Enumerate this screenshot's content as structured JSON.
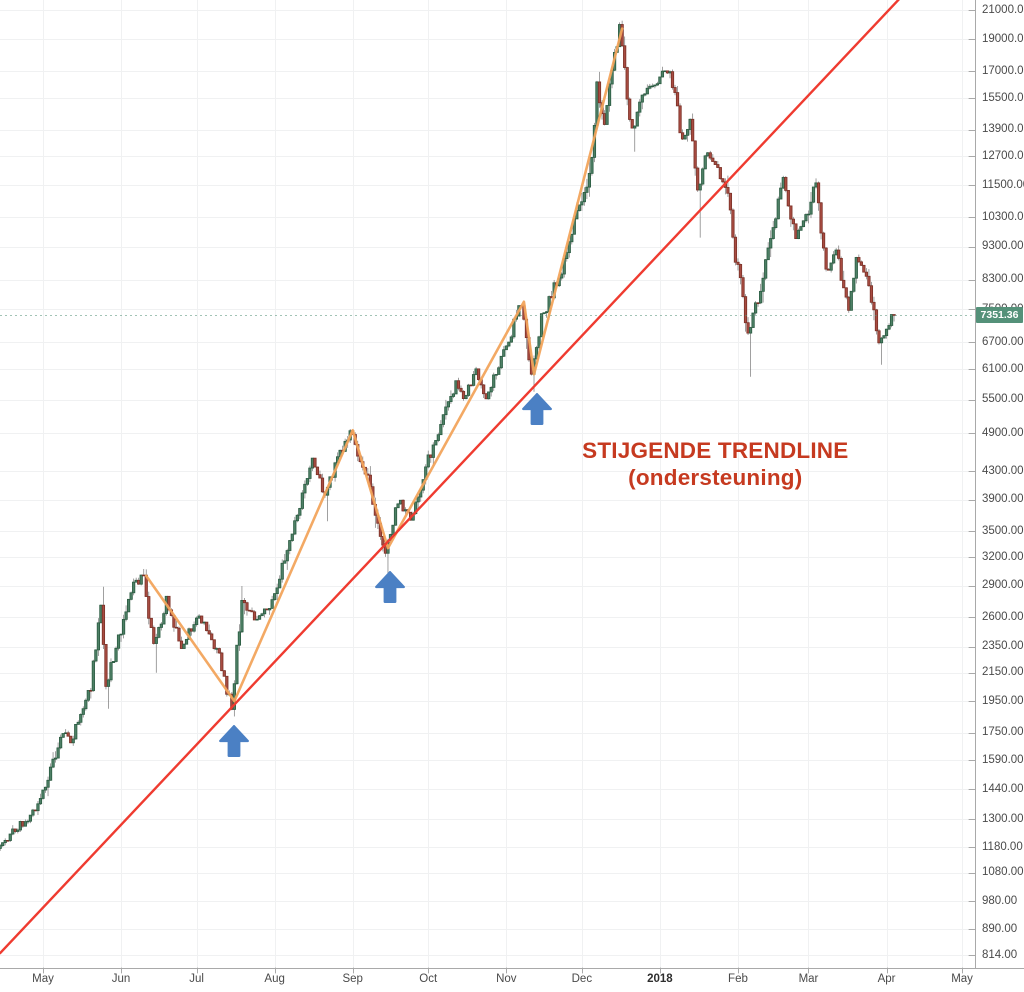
{
  "chart_data": {
    "type": "candlestick",
    "scale": "log",
    "last_price": 7351.36,
    "last_price_label": "7351.36",
    "y_axis": {
      "side": "right",
      "tick_format": "0.00",
      "ticks": [
        21000,
        19000,
        17000,
        15500,
        13900,
        12700,
        11500,
        10300,
        9300,
        8300,
        7500,
        6700,
        6100,
        5500,
        4900,
        4300,
        3900,
        3500,
        3200,
        2900,
        2600,
        2350,
        2150,
        1950,
        1750,
        1590,
        1440,
        1300,
        1180,
        1080,
        980,
        890,
        814
      ]
    },
    "x_axis": {
      "side": "bottom",
      "months": [
        {
          "label": "May",
          "day": 0
        },
        {
          "label": "Jun",
          "day": 31
        },
        {
          "label": "Jul",
          "day": 61
        },
        {
          "label": "Aug",
          "day": 92
        },
        {
          "label": "Sep",
          "day": 123
        },
        {
          "label": "Oct",
          "day": 153
        },
        {
          "label": "Nov",
          "day": 184
        },
        {
          "label": "Dec",
          "day": 214
        },
        {
          "label": "2018",
          "day": 245,
          "bold": true
        },
        {
          "label": "Feb",
          "day": 276
        },
        {
          "label": "Mar",
          "day": 304
        },
        {
          "label": "Apr",
          "day": 335
        },
        {
          "label": "May",
          "day": 365
        }
      ]
    },
    "price_path": [
      {
        "d": -17,
        "p": 1175
      },
      {
        "d": -10,
        "p": 1255
      },
      {
        "d": -3,
        "p": 1330
      },
      {
        "d": 0,
        "p": 1400
      },
      {
        "d": 9,
        "p": 1755
      },
      {
        "d": 12,
        "p": 1690
      },
      {
        "d": 20,
        "p": 2060
      },
      {
        "d": 24,
        "p": 2720
      },
      {
        "d": 26,
        "p": 2050
      },
      {
        "d": 31,
        "p": 2410
      },
      {
        "d": 36,
        "p": 2880
      },
      {
        "d": 41,
        "p": 3000
      },
      {
        "d": 45,
        "p": 2330
      },
      {
        "d": 50,
        "p": 2760
      },
      {
        "d": 56,
        "p": 2370
      },
      {
        "d": 63,
        "p": 2620
      },
      {
        "d": 70,
        "p": 2340
      },
      {
        "d": 76,
        "p": 1900
      },
      {
        "d": 80,
        "p": 2810
      },
      {
        "d": 85,
        "p": 2570
      },
      {
        "d": 92,
        "p": 2750
      },
      {
        "d": 99,
        "p": 3400
      },
      {
        "d": 108,
        "p": 4450
      },
      {
        "d": 113,
        "p": 3980
      },
      {
        "d": 123,
        "p": 4950
      },
      {
        "d": 130,
        "p": 4190
      },
      {
        "d": 137,
        "p": 3260
      },
      {
        "d": 142,
        "p": 3880
      },
      {
        "d": 147,
        "p": 3660
      },
      {
        "d": 153,
        "p": 4350
      },
      {
        "d": 165,
        "p": 5780
      },
      {
        "d": 168,
        "p": 5520
      },
      {
        "d": 173,
        "p": 6050
      },
      {
        "d": 177,
        "p": 5520
      },
      {
        "d": 184,
        "p": 6450
      },
      {
        "d": 191,
        "p": 7700
      },
      {
        "d": 195,
        "p": 5950
      },
      {
        "d": 199,
        "p": 7300
      },
      {
        "d": 208,
        "p": 8750
      },
      {
        "d": 214,
        "p": 10900
      },
      {
        "d": 218,
        "p": 11700
      },
      {
        "d": 221,
        "p": 16000
      },
      {
        "d": 224,
        "p": 14400
      },
      {
        "d": 230,
        "p": 19700
      },
      {
        "d": 235,
        "p": 13800
      },
      {
        "d": 239,
        "p": 15800
      },
      {
        "d": 250,
        "p": 17150
      },
      {
        "d": 255,
        "p": 13300
      },
      {
        "d": 258,
        "p": 14300
      },
      {
        "d": 261,
        "p": 11200
      },
      {
        "d": 264,
        "p": 12800
      },
      {
        "d": 272,
        "p": 11600
      },
      {
        "d": 276,
        "p": 9100
      },
      {
        "d": 281,
        "p": 6900
      },
      {
        "d": 286,
        "p": 8100
      },
      {
        "d": 295,
        "p": 11750
      },
      {
        "d": 300,
        "p": 9600
      },
      {
        "d": 304,
        "p": 10300
      },
      {
        "d": 308,
        "p": 11600
      },
      {
        "d": 312,
        "p": 8600
      },
      {
        "d": 316,
        "p": 9200
      },
      {
        "d": 321,
        "p": 7400
      },
      {
        "d": 324,
        "p": 8950
      },
      {
        "d": 328,
        "p": 8400
      },
      {
        "d": 333,
        "p": 6700
      },
      {
        "d": 336,
        "p": 7000
      },
      {
        "d": 338,
        "p": 7351.36
      }
    ],
    "wick_overrides": [
      {
        "day": 24,
        "high": 2890
      },
      {
        "day": 26,
        "low": 1900
      },
      {
        "day": 45,
        "low": 2150
      },
      {
        "day": 76,
        "low": 1850
      },
      {
        "day": 113,
        "low": 3620
      },
      {
        "day": 137,
        "low": 3000
      },
      {
        "day": 195,
        "low": 5650
      },
      {
        "day": 230,
        "high": 19880
      },
      {
        "day": 235,
        "low": 12900
      },
      {
        "day": 261,
        "low": 9600
      },
      {
        "day": 281,
        "low": 5950
      },
      {
        "day": 333,
        "low": 6200
      }
    ],
    "trendline": {
      "from": {
        "d": -17,
        "p": 820
      },
      "to": {
        "d": 340,
        "p": 21800
      }
    },
    "zigzag": [
      {
        "d": 41,
        "p": 3000
      },
      {
        "d": 76,
        "p": 1950
      },
      {
        "d": 123,
        "p": 4950
      },
      {
        "d": 137,
        "p": 3300
      },
      {
        "d": 191,
        "p": 7700
      },
      {
        "d": 195,
        "p": 6000
      },
      {
        "d": 230,
        "p": 19700
      }
    ],
    "arrows": [
      {
        "d": 76,
        "p": 1700
      },
      {
        "d": 138,
        "p": 2890
      },
      {
        "d": 196,
        "p": 5320
      }
    ],
    "annotation": {
      "d": 267,
      "p": 4600,
      "line1": "STIJGENDE TRENDLINE",
      "line2": "(ondersteuning)"
    }
  },
  "colors": {
    "up_body": "#4e8066",
    "up_border": "#2a5b41",
    "down_body": "#a84c42",
    "down_border": "#7a3026",
    "wick": "#7b7b7b",
    "grid": "#f0f1f2",
    "axis_line": "#a9a9a9",
    "axis_text": "#4a4a4a",
    "trendline": "#ef3b30",
    "zigzag": "#f2a45c",
    "arrow": "#4b80c4",
    "annotation": "#c63a20",
    "priceline": "#549179",
    "tag_bg": "#549179",
    "tag_text": "#ffffff"
  }
}
